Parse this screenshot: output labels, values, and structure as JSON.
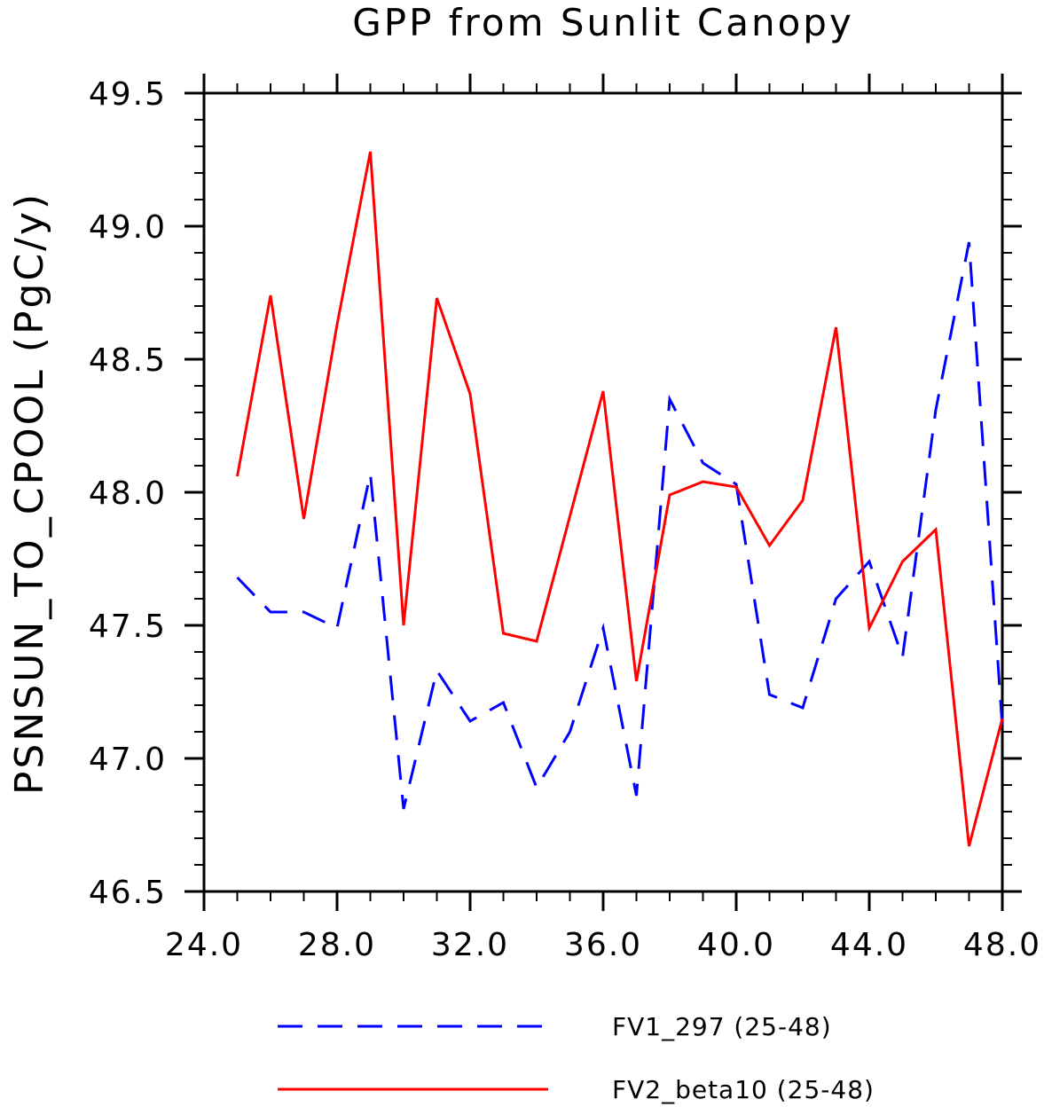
{
  "chart_data": {
    "type": "line",
    "title": "GPP from Sunlit Canopy",
    "xlabel": "",
    "ylabel": "PSNSUN_TO_CPOOL  (PgC/y)",
    "xlim": [
      24,
      48
    ],
    "ylim": [
      46.5,
      49.5
    ],
    "x_ticks": [
      24,
      28,
      32,
      36,
      40,
      44,
      48
    ],
    "x_tick_labels": [
      "24.0",
      "28.0",
      "32.0",
      "36.0",
      "40.0",
      "44.0",
      "48.0"
    ],
    "y_ticks": [
      46.5,
      47.0,
      47.5,
      48.0,
      48.5,
      49.0,
      49.5
    ],
    "y_tick_labels": [
      "46.5",
      "47.0",
      "47.5",
      "48.0",
      "48.5",
      "49.0",
      "49.5"
    ],
    "grid": false,
    "legend_position": "bottom",
    "x": [
      25,
      26,
      27,
      28,
      29,
      30,
      31,
      32,
      33,
      34,
      35,
      36,
      37,
      38,
      39,
      40,
      41,
      42,
      43,
      44,
      45,
      46,
      47,
      48
    ],
    "series": [
      {
        "name": "FV1_297 (25-48)",
        "color": "#0000ff",
        "style": "dashed",
        "values": [
          47.68,
          47.55,
          47.55,
          47.49,
          48.07,
          46.81,
          47.33,
          47.14,
          47.21,
          46.89,
          47.1,
          47.49,
          46.86,
          48.35,
          48.11,
          48.03,
          47.24,
          47.19,
          47.6,
          47.74,
          47.38,
          48.31,
          48.94,
          47.12
        ]
      },
      {
        "name": "FV2_beta10 (25-48)",
        "color": "#ff0000",
        "style": "solid",
        "values": [
          48.06,
          48.74,
          47.9,
          48.63,
          49.28,
          47.5,
          48.73,
          48.37,
          47.47,
          47.44,
          47.91,
          48.38,
          47.29,
          47.99,
          48.04,
          48.02,
          47.8,
          47.97,
          48.62,
          47.49,
          47.74,
          47.86,
          46.67,
          47.15
        ]
      }
    ]
  }
}
